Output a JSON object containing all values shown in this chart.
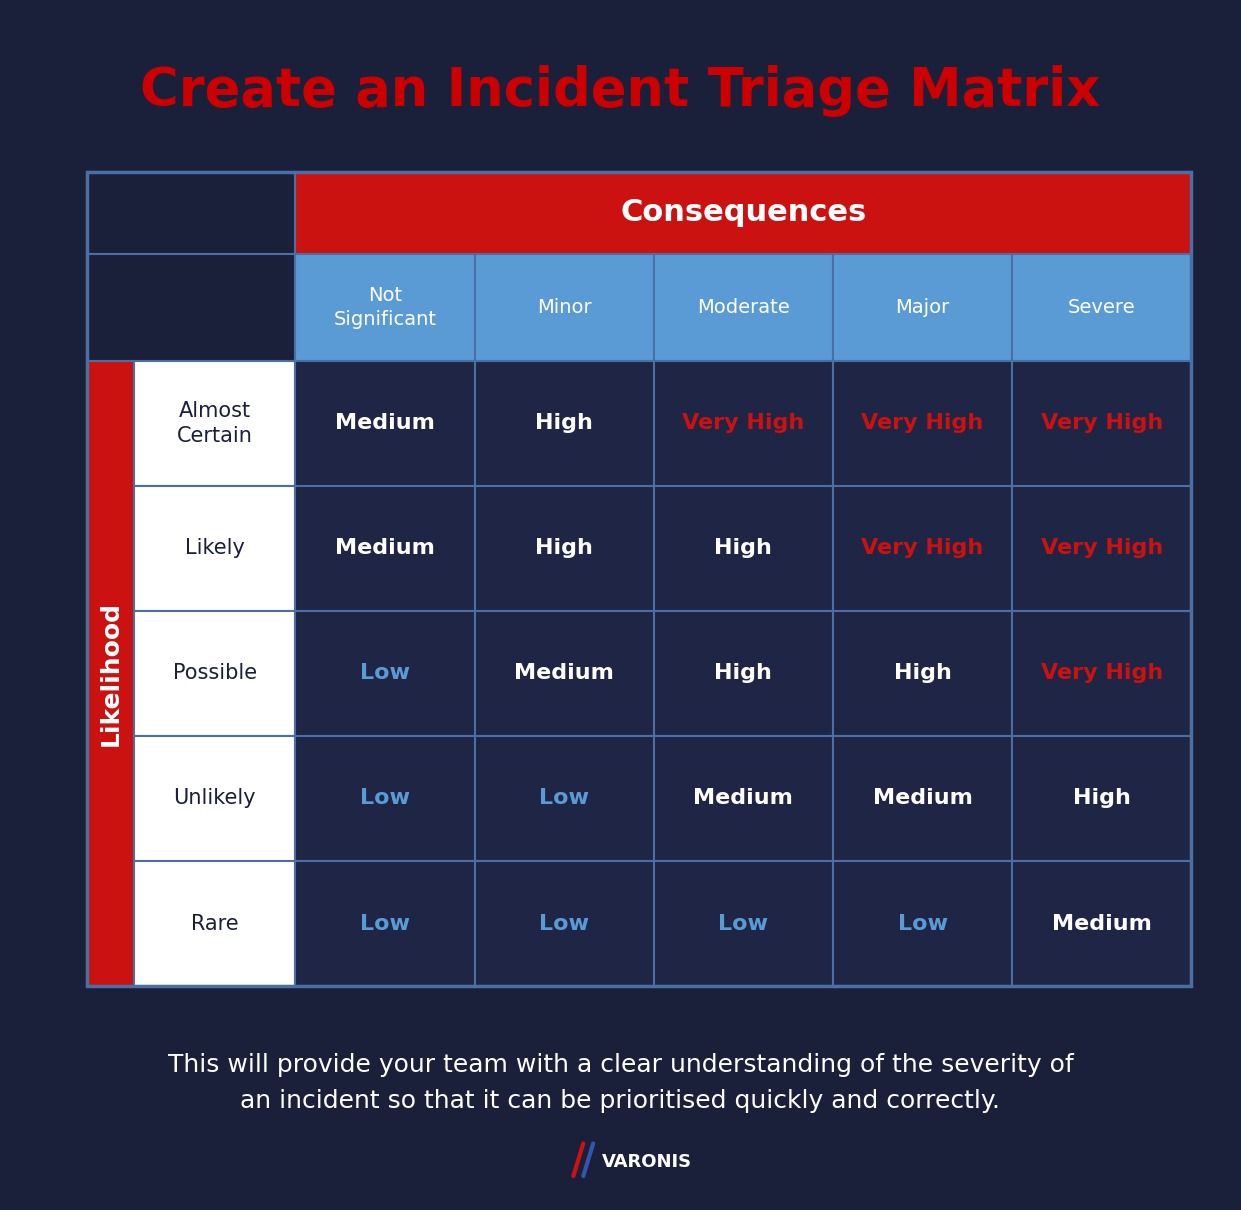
{
  "title": "Create an Incident Triage Matrix",
  "subtitle": "This will provide your team with a clear understanding of the severity of\nan incident so that it can be prioritised quickly and correctly.",
  "bg_color": "#1a1f3a",
  "title_color": "#cc0000",
  "subtitle_color": "#ffffff",
  "consequences_header": "Consequences",
  "consequences_bg": "#cc1111",
  "consequences_text_color": "#ffffff",
  "col_headers": [
    "Not\nSignificant",
    "Minor",
    "Moderate",
    "Major",
    "Severe"
  ],
  "col_header_bg": "#5b9bd5",
  "col_header_text_color": "#ffffff",
  "likelihood_label": "Likelihood",
  "likelihood_bg": "#cc1111",
  "likelihood_text_color": "#ffffff",
  "row_headers": [
    "Almost\nCertain",
    "Likely",
    "Possible",
    "Unlikely",
    "Rare"
  ],
  "row_header_bg": "#ffffff",
  "row_header_text_color": "#1a1f3a",
  "cell_bg": "#1e2545",
  "cell_border_color": "#4a6fa5",
  "matrix": [
    [
      "Medium",
      "High",
      "Very High",
      "Very High",
      "Very High"
    ],
    [
      "Medium",
      "High",
      "High",
      "Very High",
      "Very High"
    ],
    [
      "Low",
      "Medium",
      "High",
      "High",
      "Very High"
    ],
    [
      "Low",
      "Low",
      "Medium",
      "Medium",
      "High"
    ],
    [
      "Low",
      "Low",
      "Low",
      "Low",
      "Medium"
    ]
  ],
  "cell_text_colors": [
    [
      "#ffffff",
      "#ffffff",
      "#cc1111",
      "#cc1111",
      "#cc1111"
    ],
    [
      "#ffffff",
      "#ffffff",
      "#ffffff",
      "#cc1111",
      "#cc1111"
    ],
    [
      "#5b9bd5",
      "#ffffff",
      "#ffffff",
      "#ffffff",
      "#cc1111"
    ],
    [
      "#5b9bd5",
      "#5b9bd5",
      "#ffffff",
      "#ffffff",
      "#ffffff"
    ],
    [
      "#5b9bd5",
      "#5b9bd5",
      "#5b9bd5",
      "#5b9bd5",
      "#ffffff"
    ]
  ],
  "table_border_color": "#4a6fa5"
}
